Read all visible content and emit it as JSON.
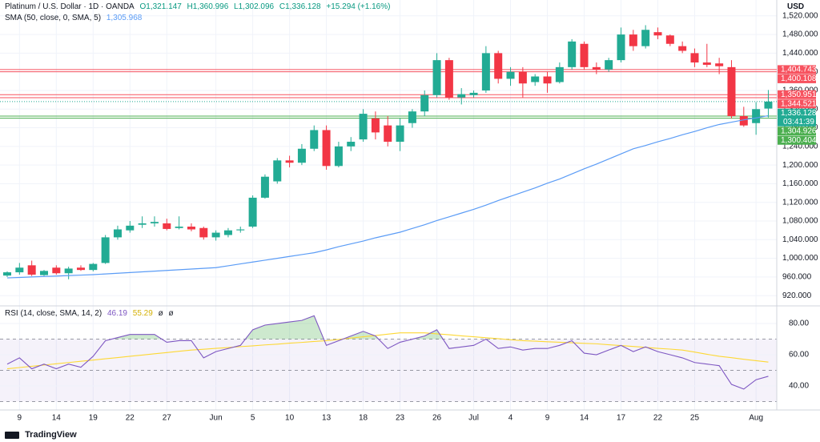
{
  "chart_data": [
    {
      "type": "candlestick",
      "title": "Platinum / U.S. Dollar · 1D · OANDA",
      "ohlc_labels": [
        "O1,321.147",
        "H1,360.996",
        "L1,302.096",
        "C1,336.128",
        "+15.294 (+1.16%)"
      ],
      "currency": "USD",
      "categories": [
        null,
        "9",
        null,
        null,
        "14",
        null,
        null,
        "19",
        null,
        null,
        "22",
        null,
        null,
        "27",
        null,
        null,
        null,
        "Jun",
        null,
        null,
        "5",
        null,
        null,
        "10",
        null,
        null,
        "13",
        null,
        null,
        "18",
        null,
        null,
        "23",
        null,
        null,
        "26",
        null,
        null,
        "Jul",
        null,
        null,
        "4",
        null,
        null,
        "9",
        null,
        null,
        "14",
        null,
        null,
        "17",
        null,
        null,
        "22",
        null,
        null,
        "25",
        null,
        null,
        null,
        null,
        "Aug",
        null
      ],
      "open": [
        963,
        970,
        985,
        964,
        980,
        968,
        980,
        975,
        990,
        1045,
        1060,
        1072,
        1075,
        1075,
        1065,
        1068,
        1065,
        1045,
        1050,
        1060,
        1068,
        1130,
        1165,
        1210,
        1205,
        1235,
        1275,
        1198,
        1240,
        1255,
        1300,
        1285,
        1250,
        1290,
        1315,
        1350,
        1425,
        1345,
        1350,
        1360,
        1440,
        1385,
        1400,
        1378,
        1390,
        1378,
        1410,
        1460,
        1410,
        1405,
        1425,
        1480,
        1455,
        1485,
        1478,
        1455,
        1440,
        1420,
        1418,
        1410,
        1305,
        1290,
        1321.147
      ],
      "high": [
        972,
        990,
        995,
        975,
        985,
        982,
        985,
        990,
        1050,
        1070,
        1080,
        1090,
        1090,
        1085,
        1090,
        1075,
        1068,
        1060,
        1065,
        1068,
        1135,
        1180,
        1215,
        1220,
        1245,
        1285,
        1285,
        1250,
        1260,
        1320,
        1315,
        1305,
        1300,
        1320,
        1360,
        1440,
        1430,
        1365,
        1360,
        1455,
        1445,
        1410,
        1410,
        1395,
        1400,
        1420,
        1470,
        1465,
        1420,
        1430,
        1495,
        1490,
        1500,
        1495,
        1480,
        1465,
        1450,
        1460,
        1430,
        1425,
        1325,
        1335,
        1360.996
      ],
      "low": [
        960,
        965,
        962,
        962,
        965,
        955,
        973,
        972,
        988,
        1040,
        1055,
        1065,
        1068,
        1060,
        1062,
        1058,
        1040,
        1038,
        1045,
        1055,
        1065,
        1128,
        1160,
        1195,
        1200,
        1230,
        1190,
        1195,
        1230,
        1250,
        1255,
        1240,
        1230,
        1280,
        1305,
        1345,
        1340,
        1330,
        1345,
        1355,
        1375,
        1370,
        1345,
        1370,
        1355,
        1375,
        1405,
        1405,
        1395,
        1400,
        1420,
        1445,
        1450,
        1470,
        1455,
        1440,
        1410,
        1410,
        1395,
        1300,
        1282,
        1265,
        1302.096
      ],
      "close": [
        970,
        980,
        965,
        973,
        968,
        978,
        975,
        988,
        1045,
        1062,
        1070,
        1075,
        1078,
        1063,
        1068,
        1062,
        1045,
        1055,
        1060,
        1062,
        1130,
        1175,
        1210,
        1205,
        1235,
        1275,
        1198,
        1240,
        1250,
        1310,
        1270,
        1250,
        1285,
        1315,
        1350,
        1425,
        1345,
        1352,
        1355,
        1440,
        1385,
        1400,
        1375,
        1390,
        1375,
        1410,
        1465,
        1410,
        1405,
        1425,
        1480,
        1455,
        1490,
        1478,
        1460,
        1445,
        1420,
        1415,
        1412,
        1305,
        1285,
        1320,
        1336.128
      ],
      "up_color": "#22ab94",
      "down_color": "#f23645",
      "sma": {
        "name": "SMA (50, close, 0, SMA, 5)",
        "value_label": "1,305.968",
        "color": "#5b9cf6",
        "values": [
          958,
          959,
          960,
          961,
          962,
          963,
          964,
          965,
          966.5,
          968,
          969.5,
          971,
          972.5,
          974,
          975.5,
          977,
          978.5,
          980,
          984,
          988,
          992,
          996,
          1000,
          1004,
          1008,
          1012,
          1018,
          1025,
          1031,
          1037,
          1044,
          1050,
          1056,
          1064,
          1072,
          1081,
          1089,
          1097,
          1105,
          1114,
          1124,
          1133,
          1142,
          1151,
          1161,
          1170,
          1181,
          1192,
          1202,
          1213,
          1224,
          1235,
          1242,
          1250,
          1257,
          1265,
          1272,
          1280,
          1287,
          1292,
          1297,
          1301,
          1305.968
        ]
      },
      "ylim": [
        898,
        1554
      ],
      "yticks": [
        {
          "value": 920,
          "label": "920.000"
        },
        {
          "value": 960,
          "label": "960.000"
        },
        {
          "value": 1000,
          "label": "1,000.000"
        },
        {
          "value": 1040,
          "label": "1,040.000"
        },
        {
          "value": 1080,
          "label": "1,080.000"
        },
        {
          "value": 1120,
          "label": "1,120.000"
        },
        {
          "value": 1160,
          "label": "1,160.000"
        },
        {
          "value": 1200,
          "label": "1,200.000"
        },
        {
          "value": 1240,
          "label": "1,240.000"
        },
        {
          "value": 1280,
          "label": "1,280.000"
        },
        {
          "value": 1320,
          "label": "1,320.000"
        },
        {
          "value": 1360,
          "label": "1,360.000"
        },
        {
          "value": 1400,
          "label": "1,400.000"
        },
        {
          "value": 1440,
          "label": "1,440.000"
        },
        {
          "value": 1480,
          "label": "1,480.000"
        },
        {
          "value": 1520,
          "label": "1,520.000"
        }
      ],
      "price_lines": [
        {
          "value": 1404.743,
          "label": "1,404.743",
          "color": "#f7525f"
        },
        {
          "value": 1400.108,
          "label": "1,400.108",
          "color": "#f7525f"
        },
        {
          "value": 1350.951,
          "label": "1,350.951",
          "color": "#f7525f"
        },
        {
          "value": 1344.521,
          "label": "1,344.521",
          "color": "#f7525f"
        },
        {
          "value": 1336.128,
          "label": "1,336.128",
          "color": "#22ab94"
        },
        {
          "value": 1304.926,
          "label": "1,304.926",
          "color": "#4caf50"
        },
        {
          "value": 1300.404,
          "label": "1,300.404",
          "color": "#4caf50"
        }
      ],
      "countdown": "03:41:39",
      "grid": true
    },
    {
      "type": "rsi",
      "title": "RSI (14, close, SMA, 14, 2)",
      "legend_values": [
        "46.19",
        "55.29",
        "ø",
        "ø"
      ],
      "series": [
        {
          "name": "RSI",
          "color": "#7e57c2",
          "values": [
            54,
            58,
            51,
            54,
            51,
            54,
            52,
            59,
            69,
            71,
            73,
            73,
            73,
            68,
            69,
            69,
            58,
            62,
            64,
            66,
            76,
            79,
            80,
            81,
            82,
            85,
            66,
            69,
            72,
            75,
            72,
            64,
            68,
            70,
            72,
            76,
            64,
            65,
            66,
            70,
            64,
            65,
            63,
            64,
            64,
            66,
            69,
            61,
            60,
            63,
            66,
            62,
            65,
            62,
            60,
            58,
            55,
            54,
            53,
            41,
            38,
            44,
            46.19
          ]
        },
        {
          "name": "RSI-based MA",
          "color": "#fdd835",
          "values": [
            51,
            51.8,
            52.6,
            53.4,
            54.2,
            55,
            55.8,
            56.6,
            57.4,
            58.2,
            59,
            59.8,
            60.6,
            61.4,
            62.2,
            63,
            63.5,
            64.1,
            64.6,
            65.2,
            65.7,
            66.3,
            66.8,
            67.4,
            67.9,
            68.5,
            69,
            69.8,
            70.7,
            71.5,
            72.3,
            73.2,
            74,
            74,
            74,
            73.4,
            72.8,
            72.1,
            71.5,
            70.9,
            70.3,
            69.6,
            69,
            68.7,
            68.3,
            68,
            67.7,
            67.3,
            67,
            66.4,
            65.9,
            65.3,
            64.7,
            64.1,
            63.6,
            63,
            61.7,
            60.3,
            59,
            58.1,
            57.1,
            56.2,
            55.29
          ]
        }
      ],
      "levels": [
        70,
        50,
        30
      ],
      "ylim": [
        24.6,
        90.8
      ],
      "yticks": [
        {
          "value": 40,
          "label": "40.00"
        },
        {
          "value": 60,
          "label": "60.00"
        },
        {
          "value": 80,
          "label": "80.00"
        }
      ]
    }
  ],
  "footer": {
    "brand": "TradingView"
  }
}
